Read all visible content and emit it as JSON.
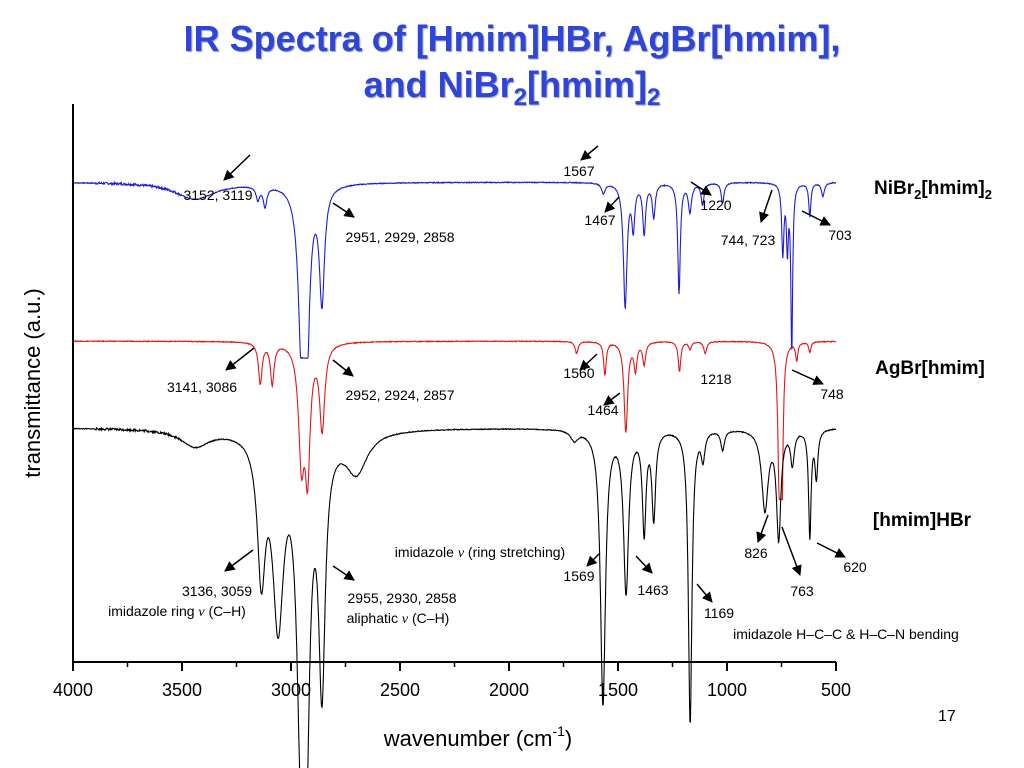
{
  "title": {
    "line1": "IR Spectra of [Hmim]HBr, AgBr[hmim],",
    "line2_prefix": "and  NiBr",
    "line2_sub": "2",
    "line2_suffix": "[hmim]",
    "line2_sub2": "2"
  },
  "page_number": "17",
  "colors": {
    "title": "#2f44d8",
    "nibr2": "#1c1ed6",
    "agbr": "#e01818",
    "hmimhbr": "#000000"
  },
  "chart_data": {
    "type": "line",
    "xlabel": "wavenumber (cm",
    "xlabel_sup": "-1",
    "xlabel_tail": ")",
    "ylabel": "transmittance (a.u.)",
    "xlim": [
      4000,
      500
    ],
    "x_ticks": [
      4000,
      3500,
      3000,
      2500,
      2000,
      1500,
      1000,
      500
    ],
    "series": [
      {
        "name": "NiBr2[hmim]2",
        "label_main": "NiBr",
        "label_sub": "2",
        "label_rest": "[hmim]",
        "label_sub2": "2",
        "color": "#1c1ed6",
        "baseline": 0.86,
        "scale": 0.3,
        "peaks": [
          {
            "x": 3440,
            "depth": 0.1,
            "w": 110
          },
          {
            "x": 3152,
            "depth": 0.08,
            "w": 10
          },
          {
            "x": 3119,
            "depth": 0.12,
            "w": 10
          },
          {
            "x": 2951,
            "depth": 0.9,
            "w": 18
          },
          {
            "x": 2929,
            "depth": 1.0,
            "w": 15
          },
          {
            "x": 2858,
            "depth": 0.68,
            "w": 14
          },
          {
            "x": 1567,
            "depth": 0.06,
            "w": 10
          },
          {
            "x": 1467,
            "depth": 0.74,
            "w": 10
          },
          {
            "x": 1430,
            "depth": 0.26,
            "w": 8
          },
          {
            "x": 1380,
            "depth": 0.3,
            "w": 8
          },
          {
            "x": 1336,
            "depth": 0.2,
            "w": 8
          },
          {
            "x": 1220,
            "depth": 0.66,
            "w": 7
          },
          {
            "x": 1170,
            "depth": 0.17,
            "w": 9
          },
          {
            "x": 1112,
            "depth": 0.13,
            "w": 8
          },
          {
            "x": 1020,
            "depth": 0.12,
            "w": 8
          },
          {
            "x": 744,
            "depth": 0.42,
            "w": 6
          },
          {
            "x": 723,
            "depth": 0.38,
            "w": 5
          },
          {
            "x": 703,
            "depth": 1.0,
            "w": 5
          },
          {
            "x": 620,
            "depth": 0.2,
            "w": 6
          },
          {
            "x": 560,
            "depth": 0.08,
            "w": 8
          }
        ]
      },
      {
        "name": "AgBr[hmim]",
        "label_main": "AgBr[hmim]",
        "color": "#e01818",
        "baseline": 0.575,
        "scale": 0.27,
        "peaks": [
          {
            "x": 3141,
            "depth": 0.27,
            "w": 10
          },
          {
            "x": 3086,
            "depth": 0.27,
            "w": 10
          },
          {
            "x": 2952,
            "depth": 0.74,
            "w": 16
          },
          {
            "x": 2924,
            "depth": 0.8,
            "w": 14
          },
          {
            "x": 2857,
            "depth": 0.56,
            "w": 14
          },
          {
            "x": 1690,
            "depth": 0.08,
            "w": 8
          },
          {
            "x": 1560,
            "depth": 0.22,
            "w": 7
          },
          {
            "x": 1464,
            "depth": 0.6,
            "w": 10
          },
          {
            "x": 1420,
            "depth": 0.18,
            "w": 8
          },
          {
            "x": 1380,
            "depth": 0.15,
            "w": 8
          },
          {
            "x": 1218,
            "depth": 0.2,
            "w": 7
          },
          {
            "x": 1170,
            "depth": 0.05,
            "w": 8
          },
          {
            "x": 1100,
            "depth": 0.08,
            "w": 8
          },
          {
            "x": 760,
            "depth": 0.9,
            "w": 8
          },
          {
            "x": 748,
            "depth": 0.95,
            "w": 6
          },
          {
            "x": 680,
            "depth": 0.12,
            "w": 6
          },
          {
            "x": 620,
            "depth": 0.07,
            "w": 6
          }
        ]
      },
      {
        "name": "[hmim]HBr",
        "label_main": "[hmim]HBr",
        "color": "#000000",
        "baseline": 0.42,
        "scale": 0.6,
        "peaks": [
          {
            "x": 3440,
            "depth": 0.05,
            "w": 80
          },
          {
            "x": 3136,
            "depth": 0.4,
            "w": 22
          },
          {
            "x": 3059,
            "depth": 0.54,
            "w": 30
          },
          {
            "x": 2955,
            "depth": 0.78,
            "w": 22
          },
          {
            "x": 2930,
            "depth": 0.8,
            "w": 18
          },
          {
            "x": 2858,
            "depth": 0.72,
            "w": 18
          },
          {
            "x": 2700,
            "depth": 0.12,
            "w": 60
          },
          {
            "x": 1700,
            "depth": 0.03,
            "w": 20
          },
          {
            "x": 1569,
            "depth": 0.82,
            "w": 14
          },
          {
            "x": 1463,
            "depth": 0.48,
            "w": 14
          },
          {
            "x": 1380,
            "depth": 0.3,
            "w": 10
          },
          {
            "x": 1336,
            "depth": 0.26,
            "w": 10
          },
          {
            "x": 1169,
            "depth": 0.88,
            "w": 10
          },
          {
            "x": 1110,
            "depth": 0.08,
            "w": 10
          },
          {
            "x": 1020,
            "depth": 0.06,
            "w": 10
          },
          {
            "x": 826,
            "depth": 0.24,
            "w": 18
          },
          {
            "x": 763,
            "depth": 0.32,
            "w": 12
          },
          {
            "x": 700,
            "depth": 0.1,
            "w": 10
          },
          {
            "x": 620,
            "depth": 0.32,
            "w": 7
          },
          {
            "x": 590,
            "depth": 0.14,
            "w": 8
          }
        ]
      }
    ],
    "annotations": [
      {
        "text": "3152, 3119",
        "series": "NiBr2[hmim]2"
      },
      {
        "text": "2951, 2929, 2858",
        "series": "NiBr2[hmim]2"
      },
      {
        "text": "1567",
        "series": "NiBr2[hmim]2"
      },
      {
        "text": "1467",
        "series": "NiBr2[hmim]2"
      },
      {
        "text": "1220",
        "series": "NiBr2[hmim]2"
      },
      {
        "text": "744, 723",
        "series": "NiBr2[hmim]2"
      },
      {
        "text": "703",
        "series": "NiBr2[hmim]2"
      },
      {
        "text": "3141, 3086",
        "series": "AgBr[hmim]"
      },
      {
        "text": "2952, 2924, 2857",
        "series": "AgBr[hmim]"
      },
      {
        "text": "1560",
        "series": "AgBr[hmim]"
      },
      {
        "text": "1464",
        "series": "AgBr[hmim]"
      },
      {
        "text": "1218",
        "series": "AgBr[hmim]"
      },
      {
        "text": "748",
        "series": "AgBr[hmim]"
      },
      {
        "text": "3136, 3059",
        "series": "[hmim]HBr"
      },
      {
        "text": "imidazole ring v (C–H)",
        "series": "[hmim]HBr"
      },
      {
        "text": "2955, 2930, 2858",
        "series": "[hmim]HBr"
      },
      {
        "text": "aliphatic v (C–H)",
        "series": "[hmim]HBr"
      },
      {
        "text": "imidazole v (ring stretching)",
        "series": "[hmim]HBr"
      },
      {
        "text": "1569",
        "series": "[hmim]HBr"
      },
      {
        "text": "1463",
        "series": "[hmim]HBr"
      },
      {
        "text": "1169",
        "series": "[hmim]HBr"
      },
      {
        "text": "826",
        "series": "[hmim]HBr"
      },
      {
        "text": "763",
        "series": "[hmim]HBr"
      },
      {
        "text": "620",
        "series": "[hmim]HBr"
      },
      {
        "text": "imidazole H–C–C & H–C–N bending",
        "series": "[hmim]HBr"
      }
    ]
  }
}
